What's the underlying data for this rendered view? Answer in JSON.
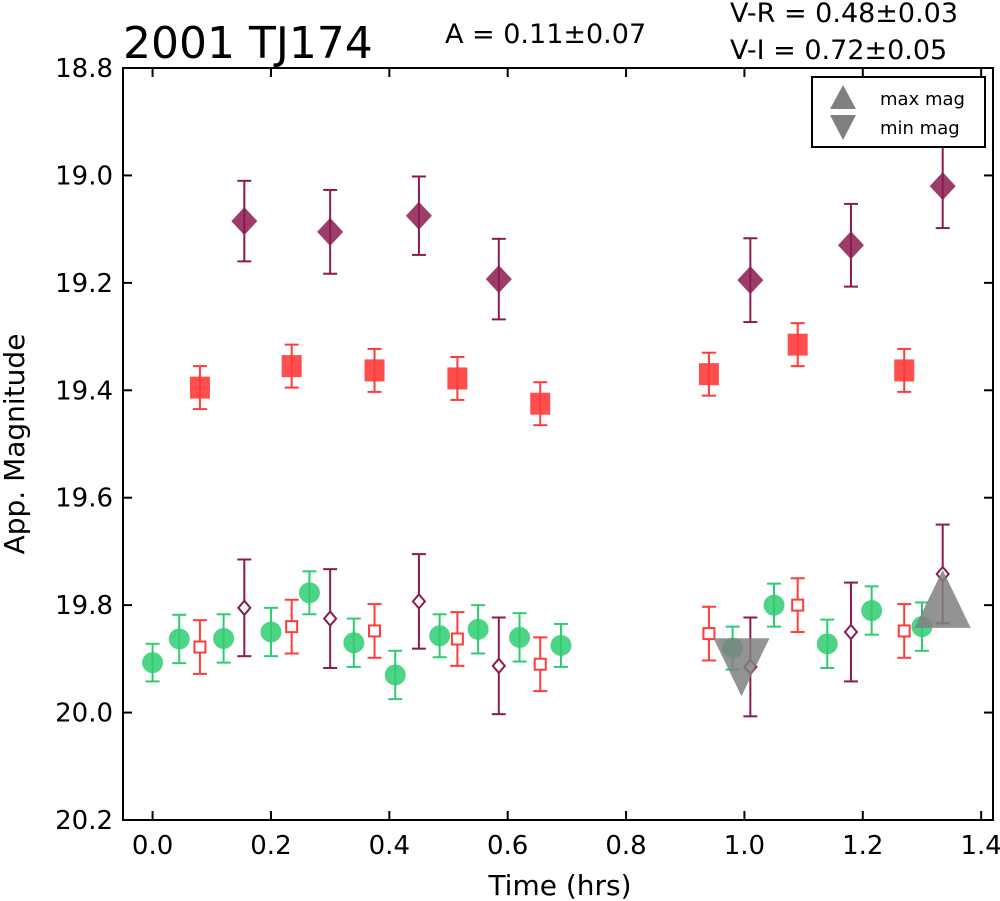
{
  "chart_data": {
    "type": "scatter",
    "title": "2001 TJ174",
    "amplitude_text": "A  = 0.11±0.07",
    "color_indices": [
      "V-R = 0.48±0.03",
      "V-I  = 0.72±0.05"
    ],
    "xlabel": "Time (hrs)",
    "ylabel": "App. Magnitude",
    "xlim": [
      -0.05,
      1.42
    ],
    "ylim": [
      20.2,
      18.8
    ],
    "y_inverted": true,
    "xticks": [
      "0.0",
      "0.2",
      "0.4",
      "0.6",
      "0.8",
      "1.0",
      "1.2",
      "1.4"
    ],
    "yticks": [
      "18.8",
      "19.0",
      "19.2",
      "19.4",
      "19.6",
      "19.8",
      "20.0",
      "20.2"
    ],
    "grid": false,
    "legend": {
      "position": "top-right",
      "entries": [
        {
          "label": "max mag",
          "marker": "triangle-up",
          "color": "#808080"
        },
        {
          "label": "min mag",
          "marker": "triangle-down",
          "color": "#808080"
        }
      ]
    },
    "series": [
      {
        "marker": "diamond-filled",
        "color": "#8b1a4f",
        "x": [
          0.155,
          0.3,
          0.45,
          0.585,
          1.01,
          1.18,
          1.335
        ],
        "y": [
          19.085,
          19.105,
          19.075,
          19.193,
          19.195,
          19.13,
          19.02
        ],
        "err": [
          0.075,
          0.078,
          0.073,
          0.075,
          0.078,
          0.077,
          0.078
        ]
      },
      {
        "marker": "square-filled",
        "color": "#ff3b3b",
        "x": [
          0.08,
          0.235,
          0.375,
          0.515,
          0.655,
          0.94,
          1.09,
          1.27
        ],
        "y": [
          19.395,
          19.355,
          19.363,
          19.378,
          19.425,
          19.37,
          19.315,
          19.363
        ],
        "err": [
          0.04,
          0.04,
          0.04,
          0.04,
          0.04,
          0.04,
          0.04,
          0.04
        ]
      },
      {
        "marker": "circle-filled",
        "color": "#2ecc71",
        "x": [
          0.0,
          0.045,
          0.12,
          0.2,
          0.265,
          0.34,
          0.41,
          0.485,
          0.55,
          0.62,
          0.69,
          0.98,
          1.05,
          1.14,
          1.215,
          1.3
        ],
        "y": [
          19.907,
          19.863,
          19.862,
          19.85,
          19.777,
          19.87,
          19.93,
          19.857,
          19.845,
          19.86,
          19.875,
          19.88,
          19.8,
          19.872,
          19.81,
          19.84
        ],
        "err": [
          0.035,
          0.045,
          0.045,
          0.045,
          0.04,
          0.045,
          0.045,
          0.04,
          0.045,
          0.045,
          0.04,
          0.04,
          0.04,
          0.045,
          0.045,
          0.045
        ]
      },
      {
        "marker": "square-open",
        "color": "#ff3b3b",
        "x": [
          0.08,
          0.235,
          0.375,
          0.515,
          0.655,
          0.94,
          1.09,
          1.27
        ],
        "y": [
          19.878,
          19.84,
          19.848,
          19.863,
          19.91,
          19.853,
          19.8,
          19.848
        ],
        "err": [
          0.05,
          0.05,
          0.05,
          0.05,
          0.05,
          0.05,
          0.05,
          0.05
        ]
      },
      {
        "marker": "diamond-open",
        "color": "#8b1a4f",
        "x": [
          0.155,
          0.3,
          0.45,
          0.585,
          1.01,
          1.18,
          1.335
        ],
        "y": [
          19.805,
          19.825,
          19.793,
          19.913,
          19.915,
          19.85,
          19.742
        ],
        "err": [
          0.09,
          0.092,
          0.088,
          0.09,
          0.092,
          0.092,
          0.092
        ]
      },
      {
        "marker": "triangle-up",
        "color": "#808080",
        "x": [
          1.335
        ],
        "y": [
          19.805
        ],
        "err": []
      },
      {
        "marker": "triangle-down",
        "color": "#808080",
        "x": [
          0.995
        ],
        "y": [
          19.91
        ],
        "err": []
      }
    ]
  }
}
